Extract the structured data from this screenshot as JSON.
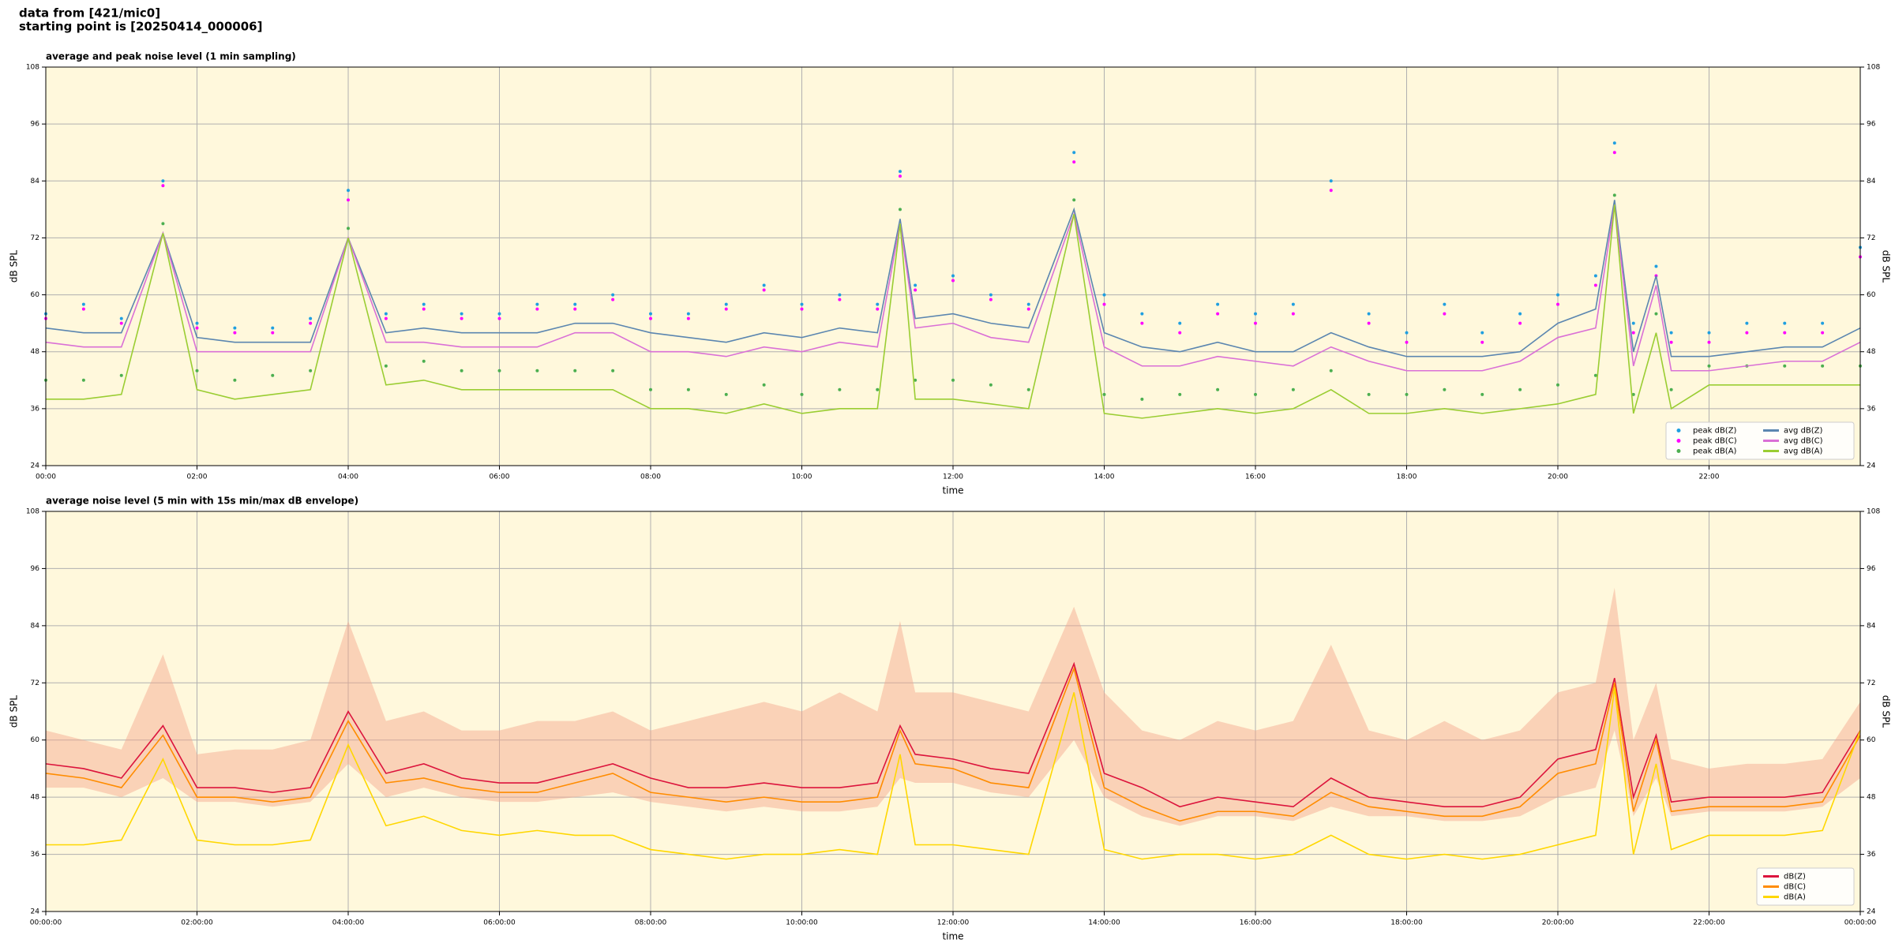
{
  "header": {
    "line1": "data from [421/mic0]",
    "line2": "starting point is [20250414_000006]"
  },
  "chart_data": [
    {
      "type": "line",
      "title": "average and peak noise level (1 min sampling)",
      "xlabel": "time",
      "ylabel": "dB SPL",
      "xlim": [
        0,
        24
      ],
      "ylim": [
        24,
        108
      ],
      "xticks": [
        {
          "value": 0,
          "label": "00:00"
        },
        {
          "value": 2,
          "label": "02:00"
        },
        {
          "value": 4,
          "label": "04:00"
        },
        {
          "value": 6,
          "label": "06:00"
        },
        {
          "value": 8,
          "label": "08:00"
        },
        {
          "value": 10,
          "label": "10:00"
        },
        {
          "value": 12,
          "label": "12:00"
        },
        {
          "value": 14,
          "label": "14:00"
        },
        {
          "value": 16,
          "label": "16:00"
        },
        {
          "value": 18,
          "label": "18:00"
        },
        {
          "value": 20,
          "label": "20:00"
        },
        {
          "value": 22,
          "label": "22:00"
        }
      ],
      "yticks": [
        24,
        36,
        48,
        60,
        72,
        84,
        96,
        108
      ],
      "grid": true,
      "legend": "lower right",
      "legend_columns": 2,
      "x": [
        0,
        0.5,
        1,
        1.55,
        2,
        2.5,
        3,
        3.5,
        4,
        4.5,
        5,
        5.5,
        6,
        6.5,
        7,
        7.5,
        8,
        8.5,
        9,
        9.5,
        10,
        10.5,
        11,
        11.3,
        11.5,
        12,
        12.5,
        13,
        13.6,
        14,
        14.5,
        15,
        15.5,
        16,
        16.5,
        17,
        17.5,
        18,
        18.5,
        19,
        19.5,
        20,
        20.5,
        20.75,
        21,
        21.3,
        21.5,
        22,
        22.5,
        23,
        23.5,
        24
      ],
      "series": [
        {
          "name": "peak dB(Z)",
          "style": "dots",
          "color": "#1f9fe0",
          "values": [
            56,
            58,
            55,
            84,
            54,
            53,
            53,
            55,
            82,
            56,
            58,
            56,
            56,
            58,
            58,
            60,
            56,
            56,
            58,
            62,
            58,
            60,
            58,
            86,
            62,
            64,
            60,
            58,
            90,
            60,
            56,
            54,
            58,
            56,
            58,
            84,
            56,
            52,
            58,
            52,
            56,
            60,
            64,
            92,
            54,
            66,
            52,
            52,
            54,
            54,
            54,
            70
          ]
        },
        {
          "name": "peak dB(C)",
          "style": "dots",
          "color": "#ff00ff",
          "values": [
            55,
            57,
            54,
            83,
            53,
            52,
            52,
            54,
            80,
            55,
            57,
            55,
            55,
            57,
            57,
            59,
            55,
            55,
            57,
            61,
            57,
            59,
            57,
            85,
            61,
            63,
            59,
            57,
            88,
            58,
            54,
            52,
            56,
            54,
            56,
            82,
            54,
            50,
            56,
            50,
            54,
            58,
            62,
            90,
            52,
            64,
            50,
            50,
            52,
            52,
            52,
            68
          ]
        },
        {
          "name": "peak dB(A)",
          "style": "dots",
          "color": "#4caf50",
          "values": [
            42,
            42,
            43,
            75,
            44,
            42,
            43,
            44,
            74,
            45,
            46,
            44,
            44,
            44,
            44,
            44,
            40,
            40,
            39,
            41,
            39,
            40,
            40,
            78,
            42,
            42,
            41,
            40,
            80,
            39,
            38,
            39,
            40,
            39,
            40,
            44,
            39,
            39,
            40,
            39,
            40,
            41,
            43,
            81,
            39,
            56,
            40,
            45,
            45,
            45,
            45,
            45
          ]
        },
        {
          "name": "avg dB(Z)",
          "style": "line",
          "color": "#5b86b0",
          "values": [
            53,
            52,
            52,
            73,
            51,
            50,
            50,
            50,
            72,
            52,
            53,
            52,
            52,
            52,
            54,
            54,
            52,
            51,
            50,
            52,
            51,
            53,
            52,
            76,
            55,
            56,
            54,
            53,
            78,
            52,
            49,
            48,
            50,
            48,
            48,
            52,
            49,
            47,
            47,
            47,
            48,
            54,
            57,
            80,
            48,
            64,
            47,
            47,
            48,
            49,
            49,
            53
          ]
        },
        {
          "name": "avg dB(C)",
          "style": "line",
          "color": "#da70d6",
          "values": [
            50,
            49,
            49,
            73,
            48,
            48,
            48,
            48,
            72,
            50,
            50,
            49,
            49,
            49,
            52,
            52,
            48,
            48,
            47,
            49,
            48,
            50,
            49,
            75,
            53,
            54,
            51,
            50,
            77,
            49,
            45,
            45,
            47,
            46,
            45,
            49,
            46,
            44,
            44,
            44,
            46,
            51,
            53,
            79,
            45,
            62,
            44,
            44,
            45,
            46,
            46,
            50
          ]
        },
        {
          "name": "avg dB(A)",
          "style": "line",
          "color": "#9acd32",
          "values": [
            38,
            38,
            39,
            73,
            40,
            38,
            39,
            40,
            72,
            41,
            42,
            40,
            40,
            40,
            40,
            40,
            36,
            36,
            35,
            37,
            35,
            36,
            36,
            75,
            38,
            38,
            37,
            36,
            77,
            35,
            34,
            35,
            36,
            35,
            36,
            40,
            35,
            35,
            36,
            35,
            36,
            37,
            39,
            79,
            35,
            52,
            36,
            41,
            41,
            41,
            41,
            41
          ]
        }
      ]
    },
    {
      "type": "line",
      "title": "average noise level (5 min with 15s min/max dB envelope)",
      "xlabel": "time",
      "ylabel": "dB SPL",
      "xlim": [
        0,
        24
      ],
      "ylim": [
        24,
        108
      ],
      "xticks": [
        {
          "value": 0,
          "label": "00:00:00"
        },
        {
          "value": 2,
          "label": "02:00:00"
        },
        {
          "value": 4,
          "label": "04:00:00"
        },
        {
          "value": 6,
          "label": "06:00:00"
        },
        {
          "value": 8,
          "label": "08:00:00"
        },
        {
          "value": 10,
          "label": "10:00:00"
        },
        {
          "value": 12,
          "label": "12:00:00"
        },
        {
          "value": 14,
          "label": "14:00:00"
        },
        {
          "value": 16,
          "label": "16:00:00"
        },
        {
          "value": 18,
          "label": "18:00:00"
        },
        {
          "value": 20,
          "label": "20:00:00"
        },
        {
          "value": 22,
          "label": "22:00:00"
        },
        {
          "value": 24,
          "label": "00:00:00"
        }
      ],
      "yticks": [
        24,
        36,
        48,
        60,
        72,
        84,
        96,
        108
      ],
      "grid": true,
      "legend": "lower right",
      "legend_columns": 1,
      "x": [
        0,
        0.5,
        1,
        1.55,
        2,
        2.5,
        3,
        3.5,
        4,
        4.5,
        5,
        5.5,
        6,
        6.5,
        7,
        7.5,
        8,
        8.5,
        9,
        9.5,
        10,
        10.5,
        11,
        11.3,
        11.5,
        12,
        12.5,
        13,
        13.6,
        14,
        14.5,
        15,
        15.5,
        16,
        16.5,
        17,
        17.5,
        18,
        18.5,
        19,
        19.5,
        20,
        20.5,
        20.75,
        21,
        21.3,
        21.5,
        22,
        22.5,
        23,
        23.5,
        24
      ],
      "envelope": {
        "color": "#f4a38a",
        "lower": [
          50,
          50,
          48,
          52,
          47,
          47,
          46,
          47,
          55,
          48,
          50,
          48,
          47,
          47,
          48,
          49,
          47,
          46,
          45,
          46,
          45,
          45,
          46,
          52,
          51,
          51,
          49,
          48,
          60,
          48,
          44,
          42,
          44,
          44,
          43,
          46,
          44,
          44,
          43,
          43,
          44,
          48,
          50,
          62,
          44,
          52,
          44,
          45,
          45,
          45,
          46,
          52
        ],
        "upper": [
          62,
          60,
          58,
          78,
          57,
          58,
          58,
          60,
          85,
          64,
          66,
          62,
          62,
          64,
          64,
          66,
          62,
          64,
          66,
          68,
          66,
          70,
          66,
          85,
          70,
          70,
          68,
          66,
          88,
          70,
          62,
          60,
          64,
          62,
          64,
          80,
          62,
          60,
          64,
          60,
          62,
          70,
          72,
          92,
          60,
          72,
          56,
          54,
          55,
          55,
          56,
          68
        ]
      },
      "series": [
        {
          "name": "dB(Z)",
          "style": "line",
          "color": "#dc143c",
          "values": [
            55,
            54,
            52,
            63,
            50,
            50,
            49,
            50,
            66,
            53,
            55,
            52,
            51,
            51,
            53,
            55,
            52,
            50,
            50,
            51,
            50,
            50,
            51,
            63,
            57,
            56,
            54,
            53,
            76,
            53,
            50,
            46,
            48,
            47,
            46,
            52,
            48,
            47,
            46,
            46,
            48,
            56,
            58,
            73,
            48,
            61,
            47,
            48,
            48,
            48,
            49,
            62
          ]
        },
        {
          "name": "dB(C)",
          "style": "line",
          "color": "#ff8c00",
          "values": [
            53,
            52,
            50,
            61,
            48,
            48,
            47,
            48,
            64,
            51,
            52,
            50,
            49,
            49,
            51,
            53,
            49,
            48,
            47,
            48,
            47,
            47,
            48,
            62,
            55,
            54,
            51,
            50,
            75,
            50,
            46,
            43,
            45,
            45,
            44,
            49,
            46,
            45,
            44,
            44,
            46,
            53,
            55,
            72,
            45,
            60,
            45,
            46,
            46,
            46,
            47,
            61
          ]
        },
        {
          "name": "dB(A)",
          "style": "line",
          "color": "#ffd700",
          "values": [
            38,
            38,
            39,
            56,
            39,
            38,
            38,
            39,
            59,
            42,
            44,
            41,
            40,
            41,
            40,
            40,
            37,
            36,
            35,
            36,
            36,
            37,
            36,
            57,
            38,
            38,
            37,
            36,
            70,
            37,
            35,
            36,
            36,
            35,
            36,
            40,
            36,
            35,
            36,
            35,
            36,
            38,
            40,
            71,
            36,
            55,
            37,
            40,
            40,
            40,
            41,
            62
          ]
        }
      ]
    }
  ]
}
